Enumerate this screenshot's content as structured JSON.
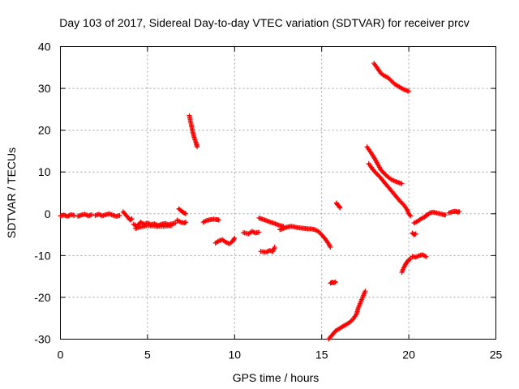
{
  "chart_data": {
    "type": "scatter",
    "title": "Day 103 of 2017, Sidereal Day-to-day VTEC variation (SDTVAR) for receiver prcv",
    "xlabel": "GPS time / hours",
    "ylabel": "SDTVAR / TECUs",
    "xlim": [
      0,
      25
    ],
    "ylim": [
      -30,
      40
    ],
    "xticks": [
      "0",
      "5",
      "10",
      "15",
      "20",
      "25"
    ],
    "yticks": [
      "-30",
      "-20",
      "-10",
      "0",
      "10",
      "20",
      "30",
      "40"
    ],
    "grid": true,
    "marker": "+",
    "color": "#ff0000",
    "series": [
      {
        "points": [
          [
            0.0,
            -0.5
          ],
          [
            0.2,
            -0.3
          ],
          [
            0.4,
            -0.6
          ],
          [
            0.6,
            -0.2
          ],
          [
            0.8,
            -0.4
          ]
        ]
      },
      {
        "points": [
          [
            1.0,
            -0.6
          ],
          [
            1.2,
            -0.3
          ],
          [
            1.4,
            -0.1
          ],
          [
            1.6,
            -0.5
          ],
          [
            1.8,
            -0.2
          ]
        ]
      },
      {
        "points": [
          [
            2.0,
            -0.4
          ],
          [
            2.2,
            -0.1
          ],
          [
            2.4,
            -0.5
          ],
          [
            2.6,
            -0.2
          ],
          [
            2.8,
            0.0
          ],
          [
            3.0,
            -0.3
          ],
          [
            3.2,
            -0.6
          ],
          [
            3.4,
            -0.4
          ]
        ]
      },
      {
        "points": [
          [
            3.6,
            0.5
          ],
          [
            3.7,
            0.0
          ],
          [
            3.8,
            -0.5
          ],
          [
            3.9,
            -1.0
          ],
          [
            4.0,
            -1.5
          ],
          [
            4.1,
            -1.2
          ]
        ]
      },
      {
        "points": [
          [
            4.2,
            -2.5
          ],
          [
            4.4,
            -3.0
          ],
          [
            4.6,
            -2.0
          ],
          [
            4.8,
            -2.5
          ],
          [
            5.0,
            -2.2
          ],
          [
            5.2,
            -2.6
          ],
          [
            5.4,
            -2.4
          ],
          [
            5.6,
            -2.8
          ],
          [
            5.8,
            -2.5
          ],
          [
            6.0,
            -2.3
          ],
          [
            6.2,
            -2.6
          ],
          [
            6.4,
            -2.4
          ],
          [
            6.6,
            -2.2
          ]
        ]
      },
      {
        "points": [
          [
            4.3,
            -3.5
          ],
          [
            4.6,
            -3.2
          ],
          [
            5.0,
            -2.8
          ],
          [
            5.5,
            -3.0
          ],
          [
            6.0,
            -3.0
          ],
          [
            6.4,
            -2.8
          ]
        ]
      },
      {
        "points": [
          [
            6.8,
            1.2
          ],
          [
            6.9,
            0.8
          ],
          [
            7.0,
            0.5
          ],
          [
            7.1,
            0.2
          ],
          [
            7.2,
            0.0
          ]
        ]
      },
      {
        "points": [
          [
            6.7,
            -1.5
          ],
          [
            6.9,
            -2.0
          ],
          [
            7.1,
            -2.2
          ],
          [
            7.2,
            -2.0
          ]
        ]
      },
      {
        "points": [
          [
            7.4,
            23.5
          ],
          [
            7.5,
            21.5
          ],
          [
            7.6,
            19.5
          ],
          [
            7.7,
            18.0
          ],
          [
            7.8,
            16.8
          ],
          [
            7.85,
            16.0
          ]
        ]
      },
      {
        "points": [
          [
            8.2,
            -2.0
          ],
          [
            8.4,
            -1.6
          ],
          [
            8.6,
            -1.4
          ],
          [
            8.8,
            -1.3
          ],
          [
            9.0,
            -1.4
          ],
          [
            9.1,
            -1.5
          ]
        ]
      },
      {
        "points": [
          [
            8.9,
            -7.0
          ],
          [
            9.1,
            -6.5
          ],
          [
            9.3,
            -6.2
          ],
          [
            9.5,
            -6.8
          ],
          [
            9.7,
            -7.2
          ],
          [
            9.9,
            -6.5
          ],
          [
            10.0,
            -5.8
          ]
        ]
      },
      {
        "points": [
          [
            10.5,
            -4.5
          ],
          [
            10.8,
            -4.8
          ],
          [
            11.0,
            -4.2
          ],
          [
            11.2,
            -4.6
          ],
          [
            11.4,
            -4.4
          ]
        ]
      },
      {
        "points": [
          [
            11.4,
            -1.0
          ],
          [
            11.6,
            -1.3
          ],
          [
            11.8,
            -1.6
          ],
          [
            12.0,
            -1.9
          ],
          [
            12.2,
            -2.2
          ],
          [
            12.4,
            -2.5
          ],
          [
            12.6,
            -2.8
          ],
          [
            12.8,
            -3.0
          ]
        ]
      },
      {
        "points": [
          [
            11.5,
            -9.0
          ],
          [
            11.8,
            -9.2
          ],
          [
            12.0,
            -8.8
          ],
          [
            12.2,
            -9.0
          ],
          [
            12.3,
            -8.0
          ]
        ]
      },
      {
        "points": [
          [
            12.6,
            -3.8
          ],
          [
            12.8,
            -3.5
          ],
          [
            13.0,
            -3.2
          ],
          [
            13.2,
            -3.0
          ],
          [
            13.4,
            -3.1
          ],
          [
            13.6,
            -3.3
          ],
          [
            13.8,
            -3.4
          ],
          [
            14.0,
            -3.5
          ],
          [
            14.2,
            -3.6
          ],
          [
            14.4,
            -3.6
          ],
          [
            14.6,
            -3.8
          ],
          [
            14.8,
            -4.2
          ],
          [
            15.0,
            -5.0
          ],
          [
            15.2,
            -6.0
          ],
          [
            15.4,
            -7.2
          ],
          [
            15.5,
            -8.0
          ]
        ]
      },
      {
        "points": [
          [
            15.5,
            -16.6
          ],
          [
            15.6,
            -16.4
          ],
          [
            15.7,
            -16.5
          ],
          [
            15.8,
            -16.3
          ]
        ]
      },
      {
        "points": [
          [
            15.85,
            2.6
          ],
          [
            15.9,
            2.2
          ],
          [
            16.0,
            1.8
          ],
          [
            16.05,
            1.4
          ]
        ]
      },
      {
        "points": [
          [
            15.4,
            -30.0
          ],
          [
            15.6,
            -29.0
          ],
          [
            15.8,
            -28.0
          ],
          [
            16.0,
            -27.5
          ],
          [
            16.2,
            -27.0
          ],
          [
            16.4,
            -26.5
          ],
          [
            16.6,
            -26.0
          ],
          [
            16.8,
            -25.2
          ],
          [
            17.0,
            -24.0
          ],
          [
            17.1,
            -22.5
          ],
          [
            17.2,
            -21.5
          ],
          [
            17.3,
            -20.5
          ],
          [
            17.4,
            -19.5
          ],
          [
            17.5,
            -18.5
          ]
        ]
      },
      {
        "points": [
          [
            18.0,
            36.0
          ],
          [
            18.2,
            34.8
          ],
          [
            18.4,
            33.6
          ],
          [
            18.6,
            33.0
          ],
          [
            18.8,
            32.6
          ],
          [
            19.0,
            31.8
          ],
          [
            19.2,
            31.0
          ],
          [
            19.4,
            30.5
          ],
          [
            19.6,
            30.0
          ],
          [
            19.8,
            29.6
          ],
          [
            20.0,
            29.3
          ]
        ]
      },
      {
        "points": [
          [
            17.6,
            16.0
          ],
          [
            17.8,
            14.8
          ],
          [
            18.0,
            13.5
          ],
          [
            18.2,
            12.0
          ],
          [
            18.4,
            10.5
          ],
          [
            18.6,
            9.6
          ],
          [
            18.8,
            8.8
          ],
          [
            19.0,
            8.2
          ],
          [
            19.2,
            7.8
          ],
          [
            19.4,
            7.5
          ],
          [
            19.6,
            7.2
          ]
        ]
      },
      {
        "points": [
          [
            17.7,
            12.0
          ],
          [
            17.9,
            10.8
          ],
          [
            18.1,
            9.8
          ],
          [
            18.3,
            9.0
          ],
          [
            18.5,
            8.0
          ],
          [
            18.7,
            7.0
          ],
          [
            18.9,
            6.0
          ],
          [
            19.1,
            5.0
          ],
          [
            19.3,
            4.0
          ],
          [
            19.5,
            3.0
          ],
          [
            19.7,
            2.2
          ],
          [
            19.9,
            1.0
          ],
          [
            20.0,
            0.0
          ],
          [
            20.1,
            -0.5
          ]
        ]
      },
      {
        "points": [
          [
            19.6,
            -14.0
          ],
          [
            19.7,
            -13.0
          ],
          [
            19.8,
            -12.2
          ],
          [
            19.9,
            -11.5
          ],
          [
            20.0,
            -11.0
          ],
          [
            20.1,
            -10.8
          ]
        ]
      },
      {
        "points": [
          [
            20.2,
            -10.2
          ],
          [
            20.4,
            -10.4
          ],
          [
            20.6,
            -10.0
          ],
          [
            20.8,
            -9.8
          ],
          [
            21.0,
            -10.3
          ]
        ]
      },
      {
        "points": [
          [
            20.2,
            -4.6
          ],
          [
            20.3,
            -5.0
          ],
          [
            20.4,
            -4.8
          ]
        ]
      },
      {
        "points": [
          [
            20.3,
            -2.2
          ],
          [
            20.5,
            -1.8
          ],
          [
            20.7,
            -1.2
          ],
          [
            20.9,
            -0.8
          ],
          [
            21.0,
            -0.3
          ]
        ]
      },
      {
        "points": [
          [
            21.0,
            -0.5
          ],
          [
            21.2,
            0.2
          ],
          [
            21.4,
            0.4
          ],
          [
            21.6,
            0.2
          ],
          [
            21.8,
            0.0
          ],
          [
            22.0,
            -0.2
          ],
          [
            22.1,
            -0.3
          ]
        ]
      },
      {
        "points": [
          [
            22.3,
            0.2
          ],
          [
            22.5,
            0.5
          ],
          [
            22.7,
            0.6
          ],
          [
            22.8,
            0.4
          ],
          [
            22.9,
            0.5
          ]
        ]
      }
    ]
  }
}
